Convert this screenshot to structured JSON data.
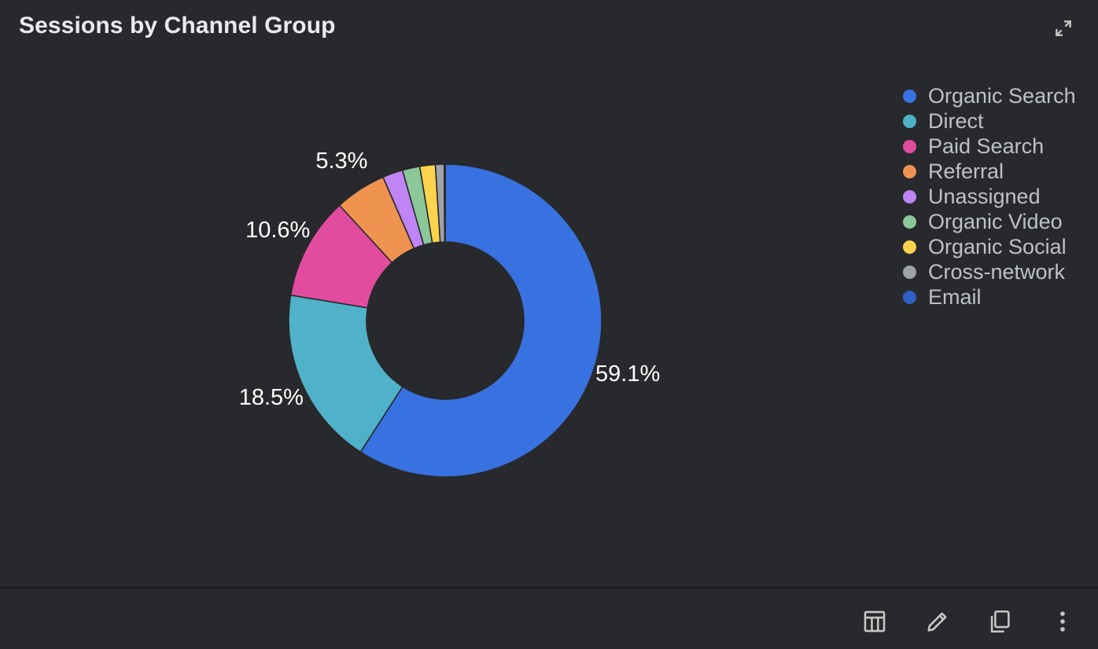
{
  "card": {
    "title": "Sessions by Channel Group",
    "expand_icon": "expand-icon"
  },
  "colors": {
    "background": "#28292c",
    "text": "#e8eaed",
    "legend_text": "#bdc1c6",
    "icon": "#c4c7c5"
  },
  "chart_data": {
    "type": "pie",
    "style": "donut",
    "title": "Sessions by Channel Group",
    "categories": [
      "Organic Search",
      "Direct",
      "Paid Search",
      "Referral",
      "Unassigned",
      "Organic Video",
      "Organic Social",
      "Cross-network",
      "Email"
    ],
    "values": [
      59.1,
      18.5,
      10.6,
      5.3,
      2.1,
      1.8,
      1.6,
      0.9,
      0.1
    ],
    "data_labels": [
      "59.1%",
      "18.5%",
      "10.6%",
      "5.3%",
      "",
      "",
      "",
      "",
      ""
    ],
    "colors": [
      "#3871e0",
      "#4fb2c9",
      "#e14c9f",
      "#ee9450",
      "#c085f5",
      "#8cc79a",
      "#fbd34d",
      "#a0a4a9",
      "#2f5fc7"
    ],
    "unit": "%",
    "legend_placement": "right"
  },
  "toolbar": {
    "icons": [
      "table-icon",
      "edit-pencil-icon",
      "copy-icon",
      "more-vert-icon"
    ]
  }
}
